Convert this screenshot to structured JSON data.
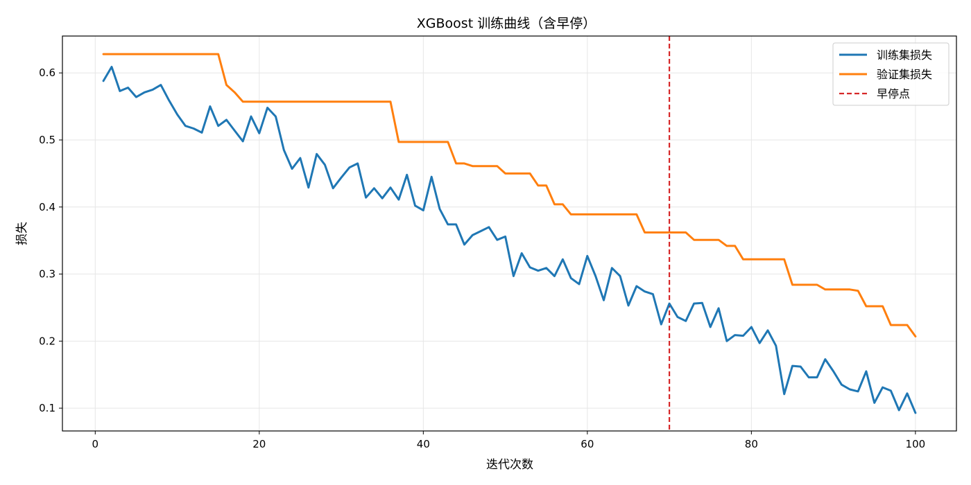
{
  "chart_data": {
    "type": "line",
    "title": "XGBoost 训练曲线（含早停）",
    "xlabel": "迭代次数",
    "ylabel": "损失",
    "xlim": [
      -4,
      105
    ],
    "ylim": [
      0.066,
      0.655
    ],
    "xticks": [
      0,
      20,
      40,
      60,
      80,
      100
    ],
    "yticks": [
      0.1,
      0.2,
      0.3,
      0.4,
      0.5,
      0.6
    ],
    "grid": true,
    "legend_position": "top-right",
    "series": [
      {
        "name": "训练集损失",
        "color": "#1f77b4",
        "x": [
          1,
          2,
          3,
          4,
          5,
          6,
          7,
          8,
          9,
          10,
          11,
          12,
          13,
          14,
          15,
          16,
          17,
          18,
          19,
          20,
          21,
          22,
          23,
          24,
          25,
          26,
          27,
          28,
          29,
          30,
          31,
          32,
          33,
          34,
          35,
          36,
          37,
          38,
          39,
          40,
          41,
          42,
          43,
          44,
          45,
          46,
          47,
          48,
          49,
          50,
          51,
          52,
          53,
          54,
          55,
          56,
          57,
          58,
          59,
          60,
          61,
          62,
          63,
          64,
          65,
          66,
          67,
          68,
          69,
          70,
          71,
          72,
          73,
          74,
          75,
          76,
          77,
          78,
          79,
          80,
          81,
          82,
          83,
          84,
          85,
          86,
          87,
          88,
          89,
          90,
          91,
          92,
          93,
          94,
          95,
          96,
          97,
          98,
          99,
          100
        ],
        "y": [
          0.588,
          0.609,
          0.573,
          0.578,
          0.564,
          0.571,
          0.575,
          0.582,
          0.559,
          0.538,
          0.521,
          0.517,
          0.511,
          0.55,
          0.521,
          0.53,
          0.514,
          0.498,
          0.535,
          0.51,
          0.548,
          0.535,
          0.485,
          0.457,
          0.473,
          0.429,
          0.479,
          0.463,
          0.428,
          0.444,
          0.459,
          0.465,
          0.414,
          0.428,
          0.413,
          0.429,
          0.411,
          0.448,
          0.402,
          0.395,
          0.445,
          0.397,
          0.374,
          0.374,
          0.344,
          0.358,
          0.364,
          0.37,
          0.351,
          0.356,
          0.297,
          0.331,
          0.31,
          0.305,
          0.309,
          0.297,
          0.322,
          0.294,
          0.285,
          0.327,
          0.297,
          0.261,
          0.309,
          0.297,
          0.253,
          0.282,
          0.274,
          0.27,
          0.225,
          0.256,
          0.236,
          0.23,
          0.256,
          0.257,
          0.221,
          0.249,
          0.2,
          0.209,
          0.208,
          0.221,
          0.197,
          0.216,
          0.193,
          0.121,
          0.163,
          0.162,
          0.146,
          0.146,
          0.173,
          0.155,
          0.135,
          0.128,
          0.125,
          0.155,
          0.108,
          0.131,
          0.126,
          0.097,
          0.122,
          0.093
        ]
      },
      {
        "name": "验证集损失",
        "color": "#ff7f0e",
        "x": [
          1,
          15,
          16,
          17,
          18,
          36,
          37,
          43,
          44,
          45,
          46,
          49,
          50,
          53,
          54,
          55,
          56,
          57,
          58,
          66,
          67,
          72,
          73,
          76,
          77,
          78,
          79,
          84,
          85,
          88,
          89,
          92,
          93,
          94,
          96,
          97,
          99,
          100
        ],
        "y": [
          0.628,
          0.628,
          0.582,
          0.571,
          0.557,
          0.557,
          0.497,
          0.497,
          0.465,
          0.465,
          0.461,
          0.461,
          0.45,
          0.45,
          0.432,
          0.432,
          0.404,
          0.404,
          0.389,
          0.389,
          0.362,
          0.362,
          0.351,
          0.351,
          0.342,
          0.342,
          0.322,
          0.322,
          0.284,
          0.284,
          0.277,
          0.277,
          0.275,
          0.252,
          0.252,
          0.224,
          0.224,
          0.207
        ]
      }
    ],
    "vline": {
      "name": "早停点",
      "x": 70,
      "color": "#d62728"
    }
  }
}
